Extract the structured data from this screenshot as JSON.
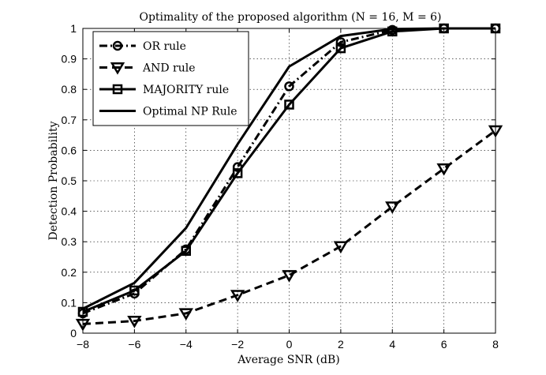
{
  "chart_data": {
    "type": "line",
    "title": "Optimality of the proposed algorithm (N = 16, M = 6)",
    "xlabel": "Average SNR (dB)",
    "ylabel": "Detection Probability",
    "xlim": [
      -8,
      8
    ],
    "ylim": [
      0,
      1
    ],
    "grid": true,
    "legend_position": "top-left",
    "x": [
      -8,
      -6,
      -4,
      -2,
      0,
      2,
      4,
      6,
      8
    ],
    "x_ticks": [
      "−8",
      "−6",
      "−4",
      "−2",
      "0",
      "2",
      "4",
      "6",
      "8"
    ],
    "y_ticks": [
      "0",
      "0.1",
      "0.2",
      "0.3",
      "0.4",
      "0.5",
      "0.6",
      "0.7",
      "0.8",
      "0.9",
      "1"
    ],
    "series": [
      {
        "name": "OR rule",
        "style": "dash-dot",
        "marker": "circle",
        "values": [
          0.065,
          0.13,
          0.275,
          0.545,
          0.81,
          0.955,
          0.995,
          1.0,
          1.0
        ]
      },
      {
        "name": "AND rule",
        "style": "dashed",
        "marker": "triangle-down",
        "values": [
          0.03,
          0.04,
          0.065,
          0.125,
          0.19,
          0.285,
          0.415,
          0.54,
          0.665
        ]
      },
      {
        "name": "MAJORITY rule",
        "style": "solid",
        "marker": "square",
        "values": [
          0.07,
          0.14,
          0.27,
          0.525,
          0.75,
          0.935,
          0.99,
          1.0,
          1.0
        ]
      },
      {
        "name": "Optimal NP Rule",
        "style": "solid",
        "marker": "none",
        "values": [
          0.08,
          0.165,
          0.345,
          0.62,
          0.875,
          0.975,
          0.998,
          1.0,
          1.0
        ]
      }
    ]
  }
}
